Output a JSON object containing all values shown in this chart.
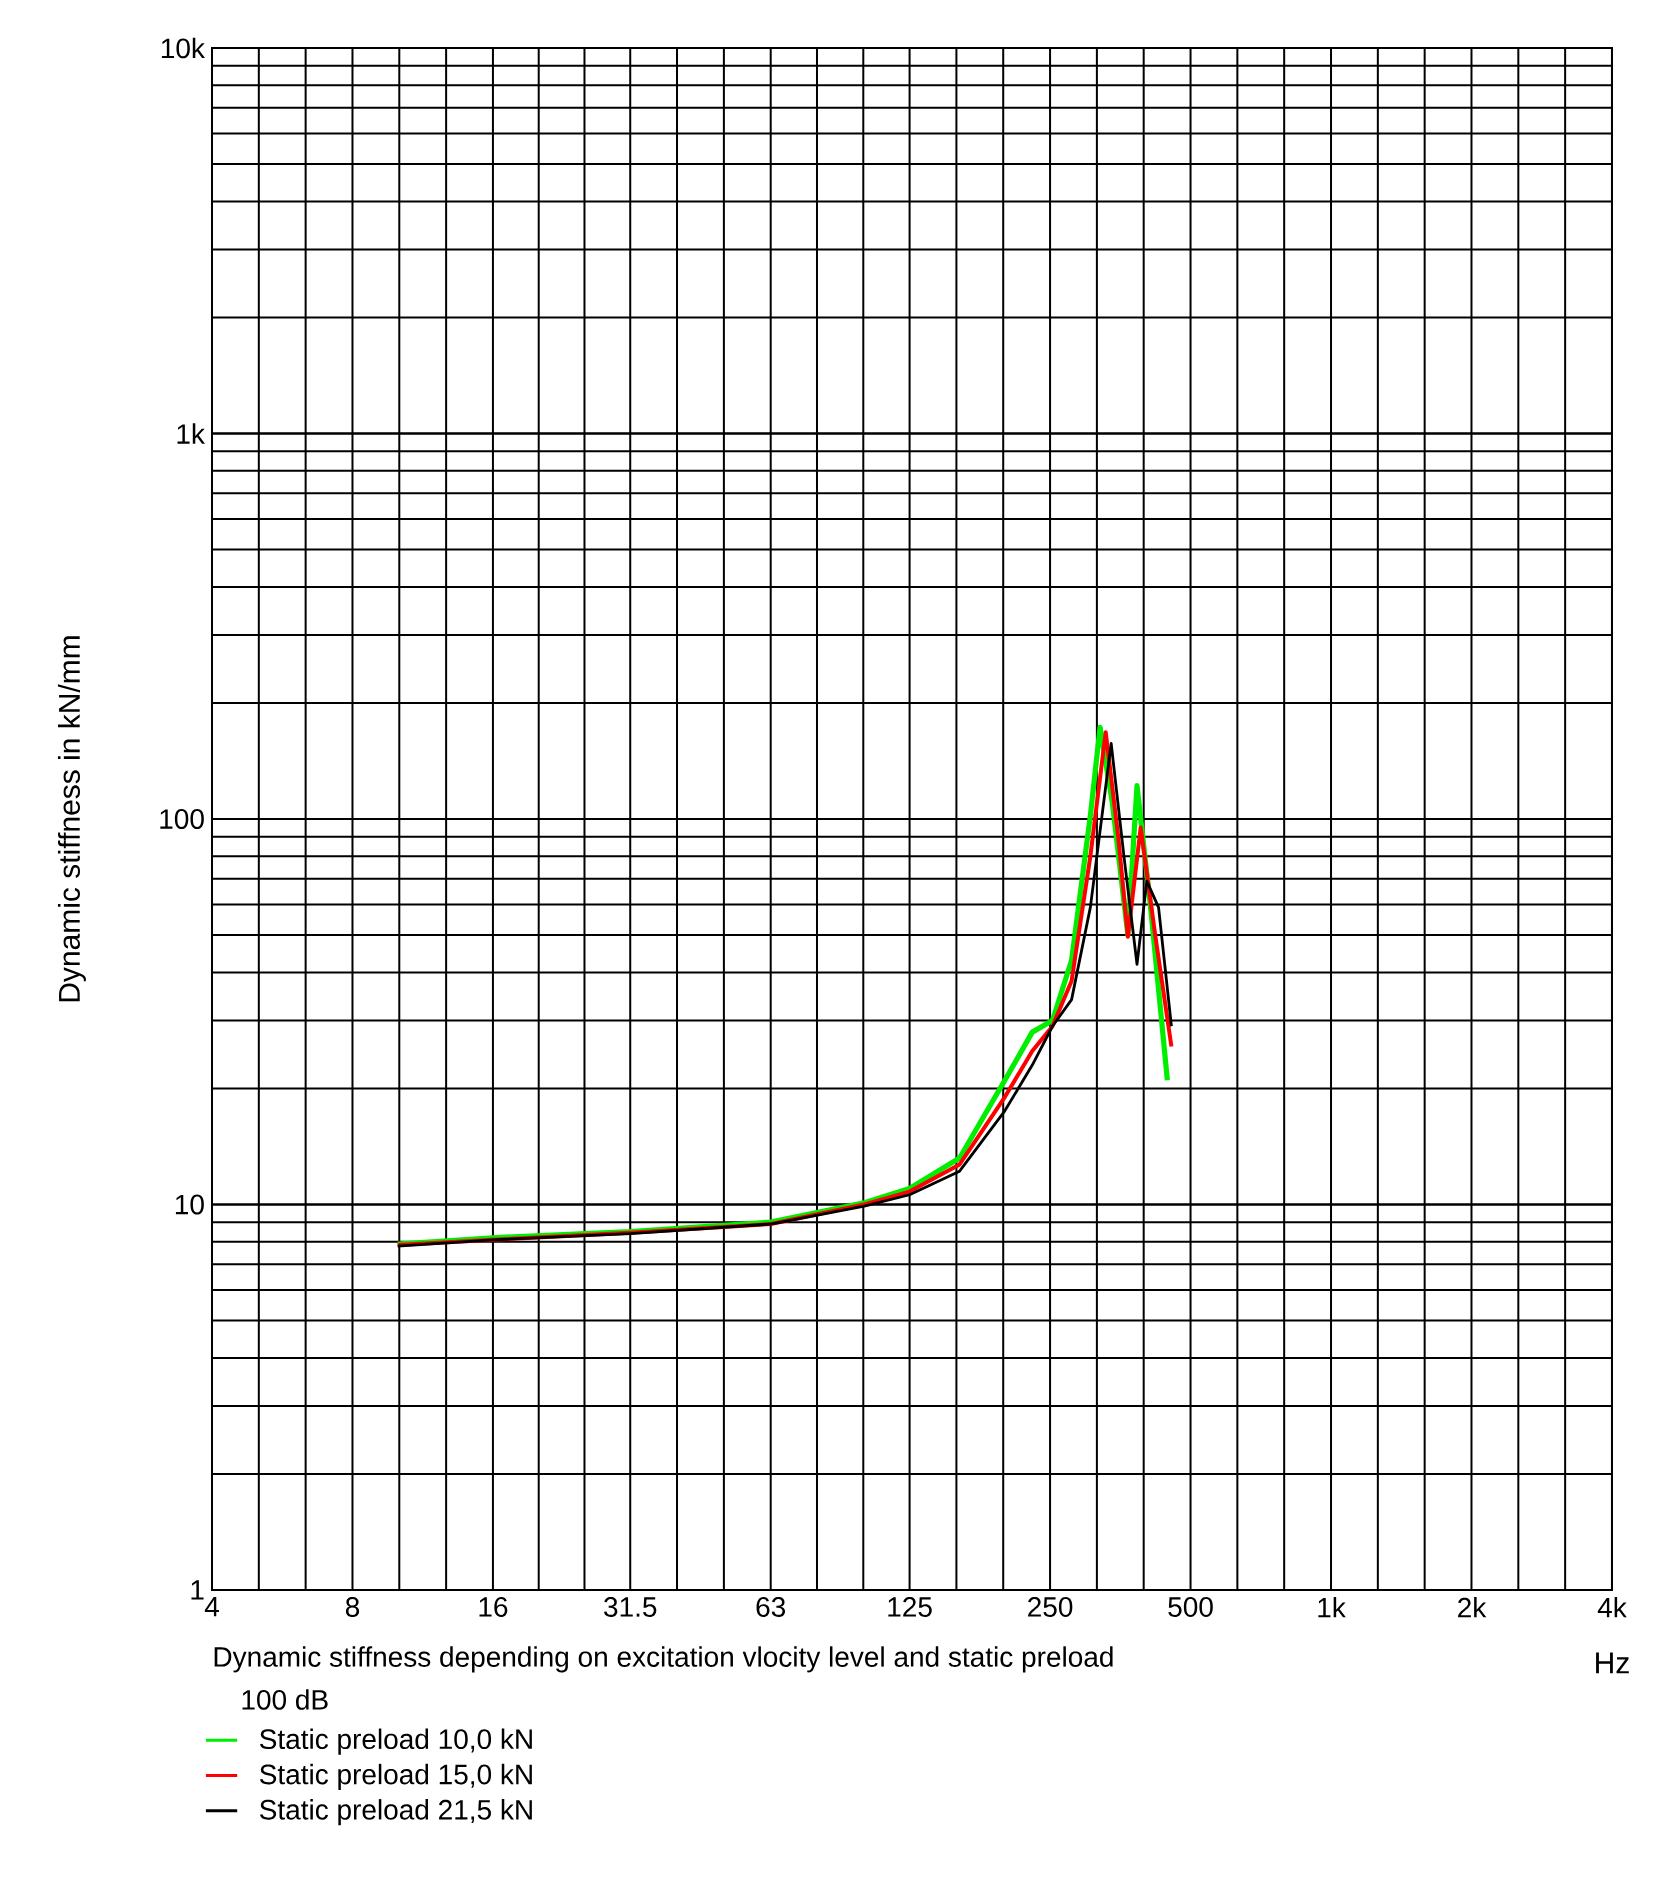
{
  "chart_data": {
    "type": "line",
    "ylabel": "Dynamic stiffness in kN/mm",
    "xlabel": "Hz",
    "log": "xy",
    "grid": true,
    "legend": "bottom left",
    "marker": "none",
    "line_style": "solid",
    "annotations": [
      "Dynamic stiffness depending on excitation vlocity level and static preload",
      "100 dB"
    ],
    "xlim": [
      4,
      4000
    ],
    "ylim": [
      1,
      10000
    ],
    "xticks": [
      4,
      8,
      16,
      31.5,
      63,
      125,
      250,
      500,
      {
        "value": 1000,
        "label": "1k"
      },
      {
        "value": 2000,
        "label": "2k"
      },
      {
        "value": 4000,
        "label": "4k"
      }
    ],
    "yticks": [
      1,
      10,
      100,
      {
        "value": 1000,
        "label": "1k"
      },
      {
        "value": 10000,
        "label": "10k"
      }
    ],
    "series": [
      {
        "name": "Static preload 10,0 kN",
        "color": "#00ee00",
        "x": [
          10,
          16,
          31.5,
          63,
          100,
          125,
          160,
          200,
          229,
          253,
          278,
          305,
          320,
          340,
          367,
          384,
          410,
          446
        ],
        "values": [
          7.9,
          8.2,
          8.5,
          9.0,
          10.1,
          11.0,
          13.2,
          21,
          28,
          30,
          43,
          102,
          173,
          110,
          50,
          122,
          60,
          21
        ]
      },
      {
        "name": "Static preload 15,0 kN",
        "color": "#ff0000",
        "x": [
          10,
          16,
          31.5,
          63,
          100,
          125,
          160,
          200,
          229,
          253,
          278,
          305,
          329,
          350,
          367,
          391,
          420,
          455
        ],
        "values": [
          7.85,
          8.1,
          8.45,
          8.9,
          10.0,
          10.8,
          12.7,
          19,
          25,
          29,
          38,
          80,
          168,
          90,
          49.5,
          95,
          50,
          25.7
        ]
      },
      {
        "name": "Static preload 21,5 kN",
        "color": "#000000",
        "x": [
          10,
          16,
          31.5,
          63,
          100,
          125,
          160,
          200,
          229,
          253,
          278,
          305,
          338,
          360,
          384,
          403,
          427,
          455
        ],
        "values": [
          7.8,
          8.1,
          8.4,
          8.9,
          9.9,
          10.6,
          12.2,
          17.5,
          23,
          29,
          34,
          59,
          157,
          80,
          42,
          69,
          59,
          29
        ]
      }
    ]
  }
}
